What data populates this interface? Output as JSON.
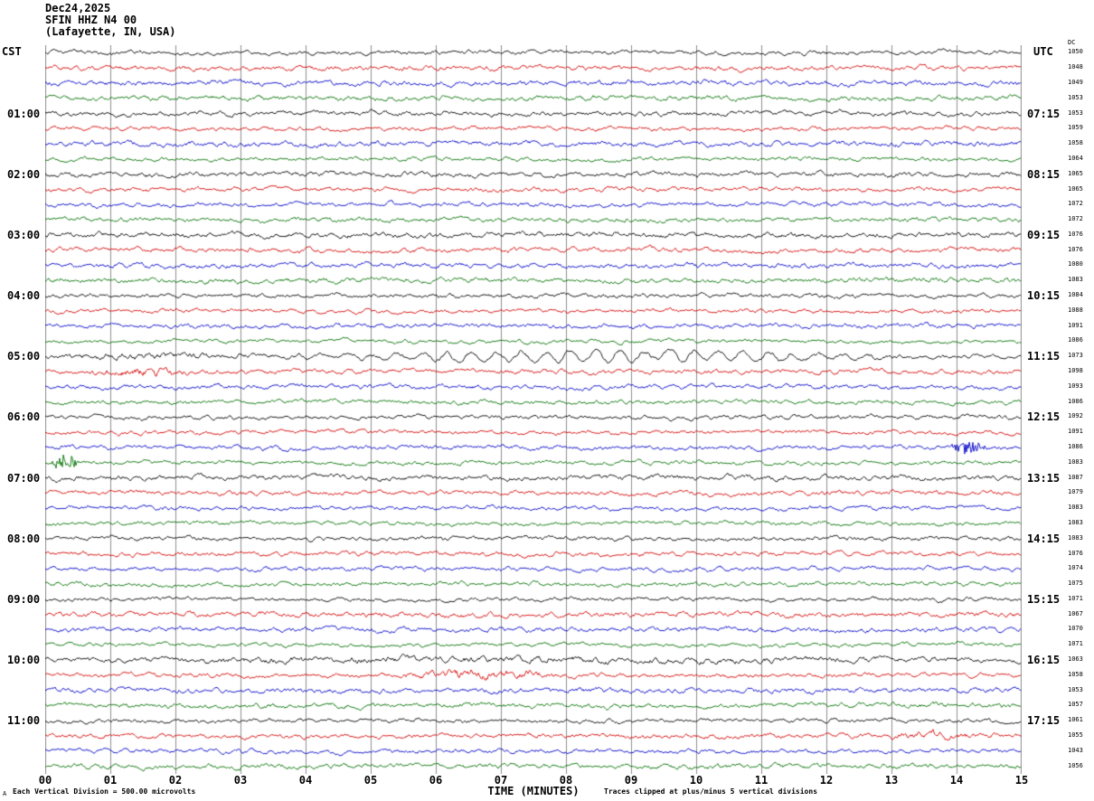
{
  "header": {
    "date": "Dec24,2025",
    "station": "SFIN HHZ N4 00",
    "location": "(Lafayette, IN, USA)"
  },
  "axes": {
    "left_timezone_label": "CST",
    "right_timezone_label": "UTC",
    "dc_column_header": "DC",
    "x_axis_title": "TIME (MINUTES)",
    "x_tick_labels": [
      "00",
      "01",
      "02",
      "03",
      "04",
      "05",
      "06",
      "07",
      "08",
      "09",
      "10",
      "11",
      "12",
      "13",
      "14",
      "15"
    ]
  },
  "footer": {
    "corner_mark": "A",
    "scale_note": "Each Vertical Division =  500.00 microvolts",
    "clip_note": "Traces clipped at plus/minus 5 vertical divisions"
  },
  "chart_data": {
    "type": "line",
    "title": "SFIN HHZ N4 00 heliplot seismogram, 48 traces of 15 minutes each",
    "x_axis": {
      "label": "TIME (MINUTES)",
      "range_minutes": [
        0,
        15
      ],
      "tick_labels": [
        "00",
        "01",
        "02",
        "03",
        "04",
        "05",
        "06",
        "07",
        "08",
        "09",
        "10",
        "11",
        "12",
        "13",
        "14",
        "15"
      ]
    },
    "rows_count": 48,
    "minutes_per_row": 15,
    "trace_color_cycle": [
      "#000000",
      "#d40000",
      "#0000c8",
      "#007000"
    ],
    "rows": [
      {
        "cst": "",
        "utc": "",
        "dc": 1050
      },
      {
        "cst": "",
        "utc": "",
        "dc": 1048
      },
      {
        "cst": "",
        "utc": "",
        "dc": 1049
      },
      {
        "cst": "",
        "utc": "",
        "dc": 1053
      },
      {
        "cst": "01:00",
        "utc": "07:15",
        "dc": 1053
      },
      {
        "cst": "",
        "utc": "",
        "dc": 1059
      },
      {
        "cst": "",
        "utc": "",
        "dc": 1058
      },
      {
        "cst": "",
        "utc": "",
        "dc": 1064
      },
      {
        "cst": "02:00",
        "utc": "08:15",
        "dc": 1065
      },
      {
        "cst": "",
        "utc": "",
        "dc": 1065
      },
      {
        "cst": "",
        "utc": "",
        "dc": 1072
      },
      {
        "cst": "",
        "utc": "",
        "dc": 1072
      },
      {
        "cst": "03:00",
        "utc": "09:15",
        "dc": 1076
      },
      {
        "cst": "",
        "utc": "",
        "dc": 1076
      },
      {
        "cst": "",
        "utc": "",
        "dc": 1080
      },
      {
        "cst": "",
        "utc": "",
        "dc": 1083
      },
      {
        "cst": "04:00",
        "utc": "10:15",
        "dc": 1084
      },
      {
        "cst": "",
        "utc": "",
        "dc": 1088
      },
      {
        "cst": "",
        "utc": "",
        "dc": 1091
      },
      {
        "cst": "",
        "utc": "",
        "dc": 1086
      },
      {
        "cst": "05:00",
        "utc": "11:15",
        "dc": 1073
      },
      {
        "cst": "",
        "utc": "",
        "dc": 1098
      },
      {
        "cst": "",
        "utc": "",
        "dc": 1093
      },
      {
        "cst": "",
        "utc": "",
        "dc": 1086
      },
      {
        "cst": "06:00",
        "utc": "12:15",
        "dc": 1092
      },
      {
        "cst": "",
        "utc": "",
        "dc": 1091
      },
      {
        "cst": "",
        "utc": "",
        "dc": 1086
      },
      {
        "cst": "",
        "utc": "",
        "dc": 1083
      },
      {
        "cst": "07:00",
        "utc": "13:15",
        "dc": 1087
      },
      {
        "cst": "",
        "utc": "",
        "dc": 1079
      },
      {
        "cst": "",
        "utc": "",
        "dc": 1083
      },
      {
        "cst": "",
        "utc": "",
        "dc": 1083
      },
      {
        "cst": "08:00",
        "utc": "14:15",
        "dc": 1083
      },
      {
        "cst": "",
        "utc": "",
        "dc": 1076
      },
      {
        "cst": "",
        "utc": "",
        "dc": 1074
      },
      {
        "cst": "",
        "utc": "",
        "dc": 1075
      },
      {
        "cst": "09:00",
        "utc": "15:15",
        "dc": 1071
      },
      {
        "cst": "",
        "utc": "",
        "dc": 1067
      },
      {
        "cst": "",
        "utc": "",
        "dc": 1070
      },
      {
        "cst": "",
        "utc": "",
        "dc": 1071
      },
      {
        "cst": "10:00",
        "utc": "16:15",
        "dc": 1063
      },
      {
        "cst": "",
        "utc": "",
        "dc": 1058
      },
      {
        "cst": "",
        "utc": "",
        "dc": 1053
      },
      {
        "cst": "",
        "utc": "",
        "dc": 1057
      },
      {
        "cst": "11:00",
        "utc": "17:15",
        "dc": 1061
      },
      {
        "cst": "",
        "utc": "",
        "dc": 1055
      },
      {
        "cst": "",
        "utc": "",
        "dc": 1043
      },
      {
        "cst": "",
        "utc": "",
        "dc": 1056
      }
    ],
    "events": [
      {
        "row": 20,
        "start_min": 3.2,
        "end_min": 13.6,
        "amplitude": 6.0,
        "character": "low-frequency swell"
      },
      {
        "row": 20,
        "start_min": 0.0,
        "end_min": 3.2,
        "amplitude": 1.5,
        "character": "noise burst"
      },
      {
        "row": 21,
        "start_min": 0.6,
        "end_min": 2.4,
        "amplitude": 2.5,
        "character": "noise burst"
      },
      {
        "row": 27,
        "start_min": 0.05,
        "end_min": 0.55,
        "amplitude": 6.5,
        "character": "spike"
      },
      {
        "row": 26,
        "start_min": 13.9,
        "end_min": 14.5,
        "amplitude": 5.5,
        "character": "spike"
      },
      {
        "row": 41,
        "start_min": 5.4,
        "end_min": 7.9,
        "amplitude": 3.0,
        "character": "noise burst"
      },
      {
        "row": 45,
        "start_min": 12.8,
        "end_min": 14.4,
        "amplitude": 2.0,
        "character": "noise burst"
      },
      {
        "row": 40,
        "start_min": 0.0,
        "end_min": 15.0,
        "amplitude": 0.8,
        "character": "noise burst"
      }
    ]
  }
}
